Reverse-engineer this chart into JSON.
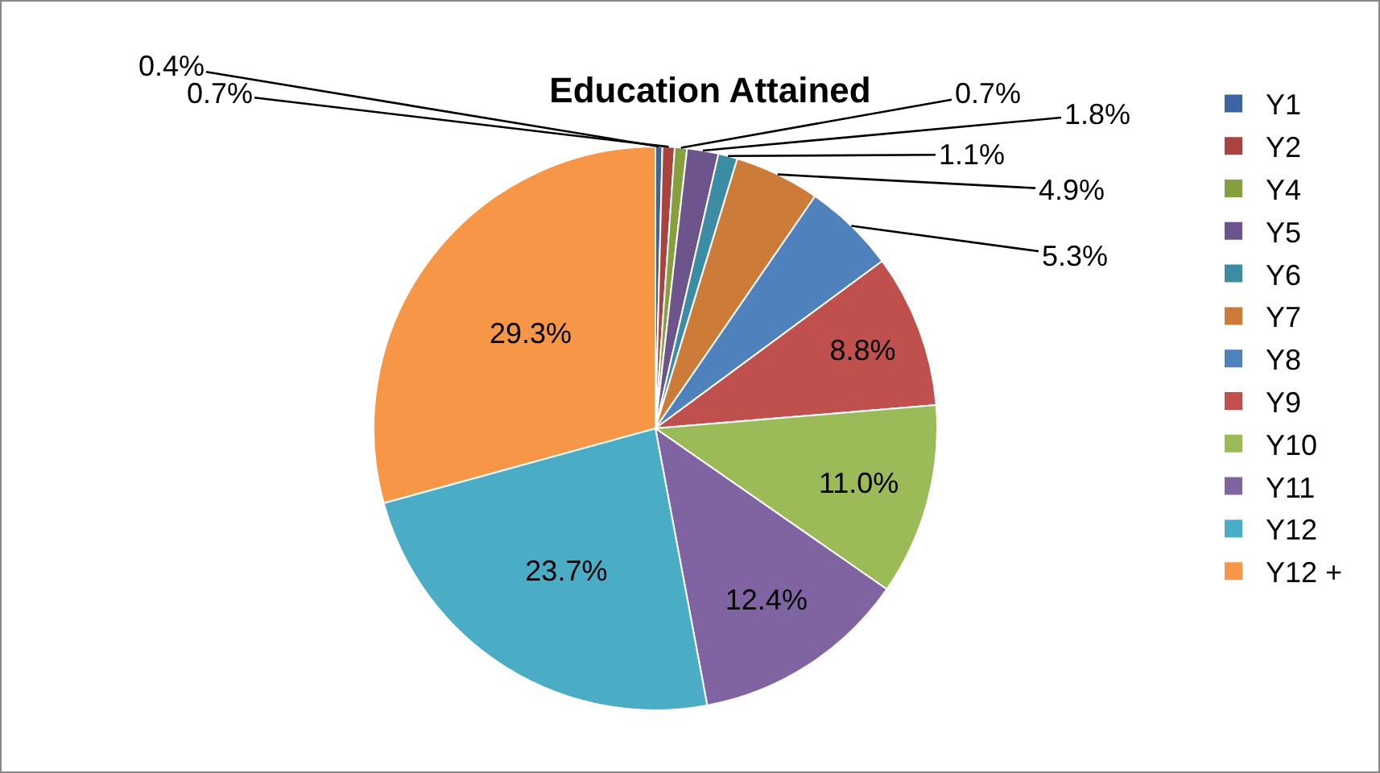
{
  "chart_data": {
    "type": "pie",
    "title": "Education Attained",
    "categories": [
      "Y1",
      "Y2",
      "Y4",
      "Y5",
      "Y6",
      "Y7",
      "Y8",
      "Y9",
      "Y10",
      "Y11",
      "Y12",
      "Y12 +"
    ],
    "values": [
      0.4,
      0.7,
      0.7,
      1.8,
      1.1,
      4.9,
      5.3,
      8.8,
      11.0,
      12.4,
      23.7,
      29.3
    ],
    "value_labels": [
      "0.4%",
      "0.7%",
      "0.7%",
      "1.8%",
      "1.1%",
      "4.9%",
      "5.3%",
      "8.8%",
      "11.0%",
      "12.4%",
      "23.7%",
      "29.3%"
    ],
    "colors": [
      "#3b64a0",
      "#a9433f",
      "#86a03f",
      "#6e548d",
      "#3c8da3",
      "#cc7b38",
      "#4f81bd",
      "#c0504d",
      "#9bbb59",
      "#8064a2",
      "#4bacc6",
      "#f79646"
    ],
    "legend": "right"
  }
}
